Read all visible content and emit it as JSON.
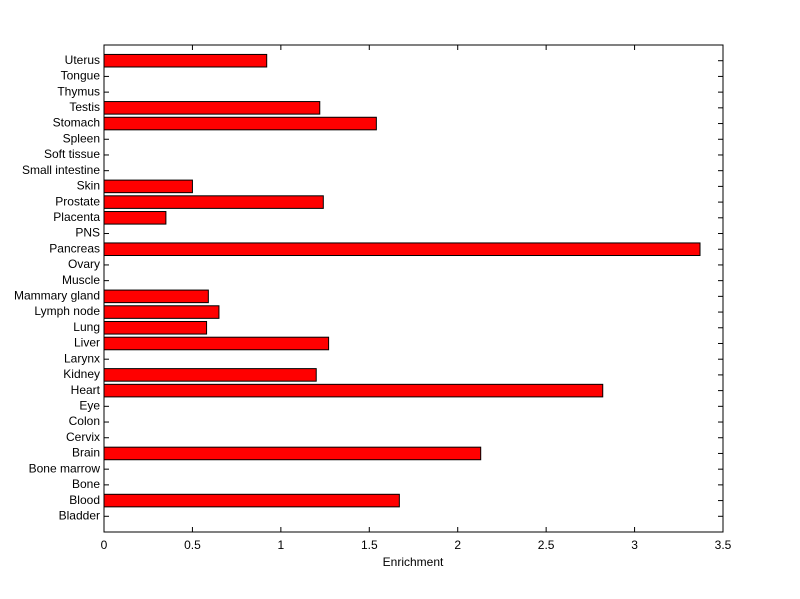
{
  "chart_data": {
    "type": "barh",
    "xlabel": "Enrichment",
    "categories": [
      "Uterus",
      "Tongue",
      "Thymus",
      "Testis",
      "Stomach",
      "Spleen",
      "Soft tissue",
      "Small intestine",
      "Skin",
      "Prostate",
      "Placenta",
      "PNS",
      "Pancreas",
      "Ovary",
      "Muscle",
      "Mammary gland",
      "Lymph node",
      "Lung",
      "Liver",
      "Larynx",
      "Kidney",
      "Heart",
      "Eye",
      "Colon",
      "Cervix",
      "Brain",
      "Bone marrow",
      "Bone",
      "Blood",
      "Bladder"
    ],
    "values": [
      0.92,
      0,
      0,
      1.22,
      1.54,
      0,
      0,
      0,
      0.5,
      1.24,
      0.35,
      0,
      3.37,
      0,
      0,
      0.59,
      0.65,
      0.58,
      1.27,
      0,
      1.2,
      2.82,
      0,
      0,
      0,
      2.13,
      0,
      0,
      1.67,
      0
    ],
    "color": "#ff0000",
    "xlim": [
      0,
      3.5
    ],
    "xticks": [
      0,
      0.5,
      1,
      1.5,
      2,
      2.5,
      3,
      3.5
    ]
  }
}
